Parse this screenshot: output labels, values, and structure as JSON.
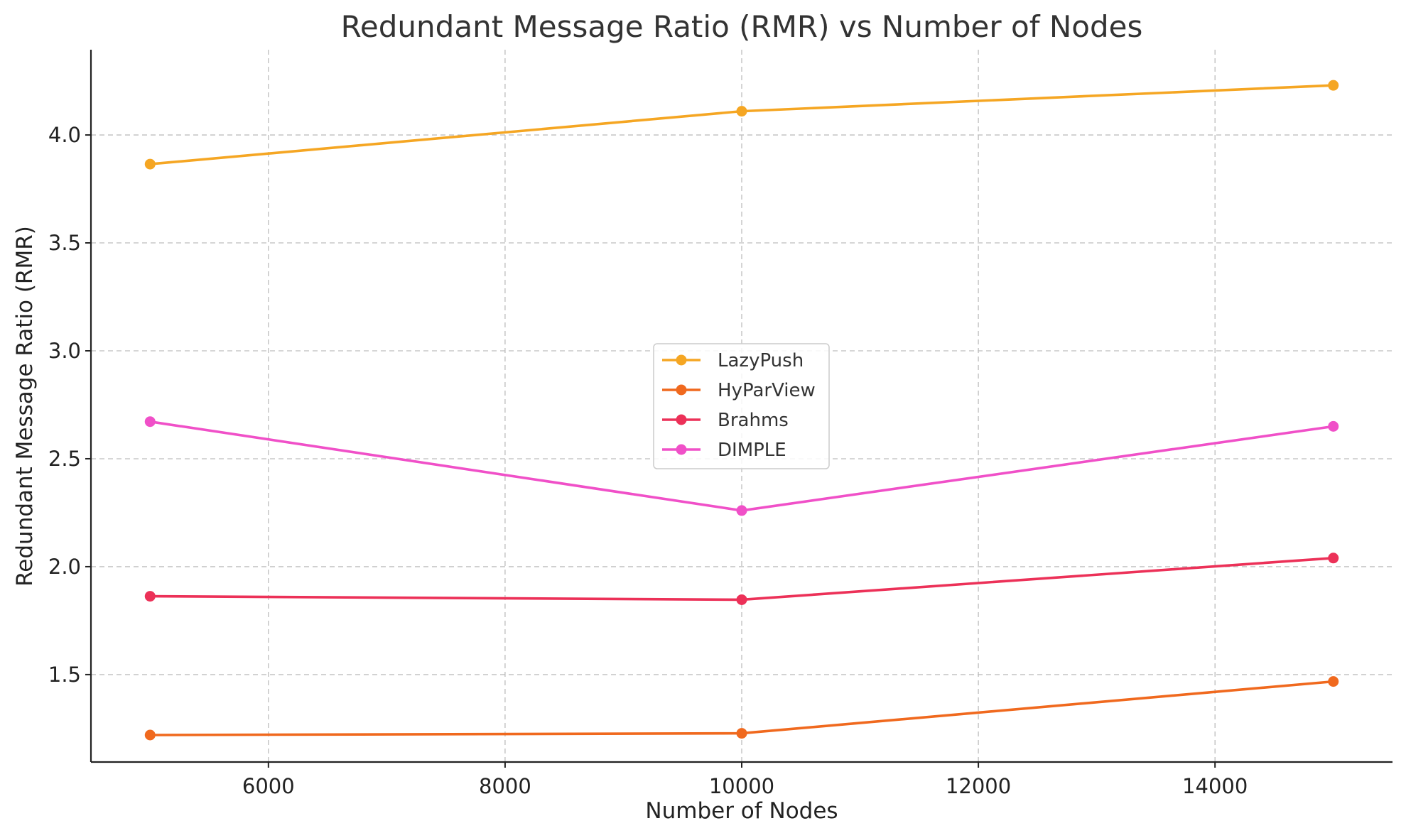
{
  "chart_data": {
    "type": "line",
    "title": "Redundant Message Ratio (RMR) vs Number of Nodes",
    "xlabel": "Number of Nodes",
    "ylabel": "Redundant Message Ratio (RMR)",
    "x": [
      5000,
      10000,
      15000
    ],
    "xlim": [
      4500,
      15500
    ],
    "ylim": [
      1.095,
      4.395
    ],
    "xticks": [
      6000,
      8000,
      10000,
      12000,
      14000
    ],
    "yticks": [
      1.5,
      2.0,
      2.5,
      3.0,
      3.5,
      4.0
    ],
    "xtick_labels": [
      "6000",
      "8000",
      "10000",
      "12000",
      "14000"
    ],
    "ytick_labels": [
      "1.5",
      "2.0",
      "2.5",
      "3.0",
      "3.5",
      "4.0"
    ],
    "grid": true,
    "legend_position": "center",
    "series": [
      {
        "name": "LazyPush",
        "color": "#f5a623",
        "values": [
          3.865,
          4.11,
          4.23
        ]
      },
      {
        "name": "HyParView",
        "color": "#f0691e",
        "values": [
          1.22,
          1.228,
          1.468
        ]
      },
      {
        "name": "Brahms",
        "color": "#ec3158",
        "values": [
          1.863,
          1.847,
          2.04
        ]
      },
      {
        "name": "DIMPLE",
        "color": "#f050c8",
        "values": [
          2.672,
          2.26,
          2.65
        ]
      }
    ]
  }
}
